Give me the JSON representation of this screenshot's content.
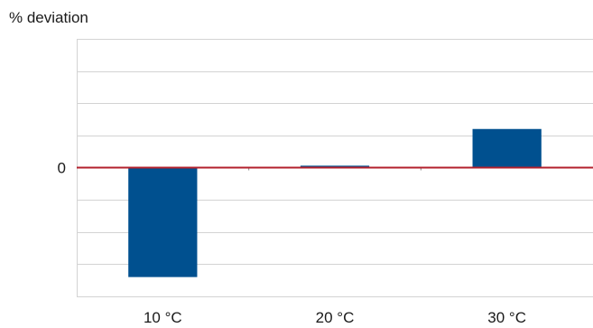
{
  "chart_data": {
    "type": "bar",
    "title": "",
    "ylabel": "% deviation",
    "xlabel": "",
    "categories": [
      "10 °C",
      "20 °C",
      "30 °C"
    ],
    "series": [
      {
        "values": [
          -3.4,
          0.06,
          1.2
        ]
      }
    ],
    "ylim": [
      -4,
      4
    ],
    "yticks": [
      0
    ],
    "ytick_labels": [
      "0"
    ],
    "grid": true,
    "gridlines": 8,
    "bar_color": "#00508f",
    "zero_line_color": "#b3202c",
    "grid_color": "#d3d3d3"
  }
}
